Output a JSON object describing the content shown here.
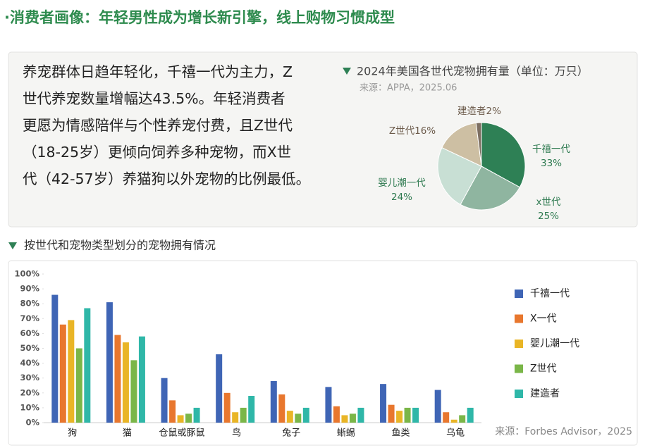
{
  "header": {
    "title": "·消费者画像：年轻男性成为增长新引擎，线上购物习惯成型"
  },
  "paragraph_lines": [
    "养宠群体日趋年轻化，千禧一代为主力，Z",
    "世代养宠数量增幅达43.5%。年轻消费者",
    "更愿为情感陪伴与个性养宠付费，且Z世代",
    "（18-25岁）更倾向饲养多种宠物，而X世",
    "代（42-57岁）养猫狗以外宠物的比例最低。"
  ],
  "chart_data": [
    {
      "type": "pie",
      "title": "2024年美国各世代宠物拥有量（单位：万只）",
      "subtitle": "来源：APPA，2025.06",
      "categories": [
        "千禧一代",
        "x世代",
        "婴儿潮一代",
        "Z世代",
        "建造者"
      ],
      "values": [
        33,
        25,
        24,
        16,
        2
      ],
      "value_labels": [
        "33%",
        "25%",
        "24%",
        "16%",
        "2%"
      ],
      "colors": [
        "#2e8055",
        "#8fb5a0",
        "#c8dfd4",
        "#cdbfa3",
        "#7d6f62"
      ]
    },
    {
      "type": "bar",
      "title": "按世代和宠物类型划分的宠物拥有情况",
      "source": "来源：Forbes Advisor，2025",
      "categories": [
        "狗",
        "猫",
        "仓鼠或豚鼠",
        "鸟",
        "兔子",
        "蜥蜴",
        "鱼类",
        "乌龟"
      ],
      "series": [
        {
          "name": "千禧一代",
          "color": "#3f65b5",
          "values": [
            86,
            81,
            30,
            46,
            28,
            24,
            26,
            22
          ]
        },
        {
          "name": "X一代",
          "color": "#e8772e",
          "values": [
            66,
            59,
            15,
            20,
            19,
            11,
            12,
            7
          ]
        },
        {
          "name": "婴儿潮一代",
          "color": "#e9b526",
          "values": [
            69,
            54,
            5,
            7,
            8,
            5,
            8,
            2
          ]
        },
        {
          "name": "Z世代",
          "color": "#7ab648",
          "values": [
            50,
            42,
            6,
            10,
            6,
            6,
            10,
            5
          ]
        },
        {
          "name": "建造者",
          "color": "#2fb7a8",
          "values": [
            77,
            58,
            10,
            18,
            10,
            10,
            10,
            10
          ]
        }
      ],
      "ylim": [
        0,
        100
      ],
      "yticks": [
        {
          "value": 0,
          "label": "0%"
        },
        {
          "value": 10,
          "label": "10%"
        },
        {
          "value": 20,
          "label": "20%"
        },
        {
          "value": 30,
          "label": "30%"
        },
        {
          "value": 40,
          "label": "40%"
        },
        {
          "value": 50,
          "label": "50%"
        },
        {
          "value": 60,
          "label": "60%"
        },
        {
          "value": 70,
          "label": "70%"
        },
        {
          "value": 80,
          "label": "80%"
        },
        {
          "value": 90,
          "label": "90%"
        },
        {
          "value": 100,
          "label": "100%"
        }
      ],
      "legend": "right"
    }
  ]
}
